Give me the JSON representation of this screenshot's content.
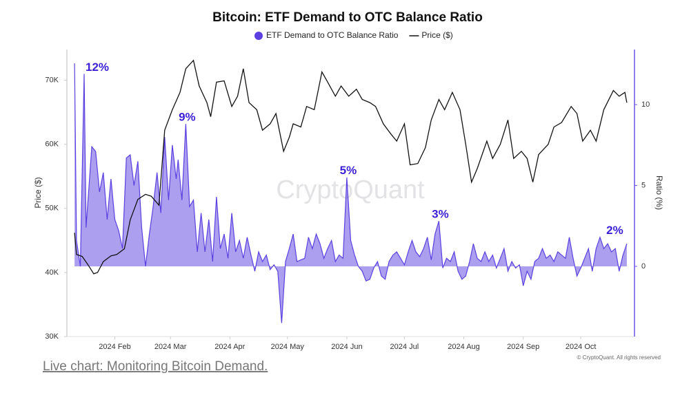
{
  "chart_data": {
    "type": "line-area",
    "title": "Bitcoin: ETF Demand to OTC Balance Ratio",
    "ylabel": "Price ($)",
    "y2label": "Ratio (%)",
    "watermark": "CryptoQuant",
    "copyright": "© CryptoQuant. All rights reserved",
    "link": "Live chart: Monitoring Bitcoin Demand.",
    "xlim": [
      7,
      303
    ],
    "xticks": [
      {
        "value": 32,
        "label": "2024 Feb"
      },
      {
        "value": 61,
        "label": "2024 Mar"
      },
      {
        "value": 92,
        "label": "2024 Apr"
      },
      {
        "value": 122,
        "label": "2024 May"
      },
      {
        "value": 153,
        "label": "2024 Jun"
      },
      {
        "value": 183,
        "label": "2024 Jul"
      },
      {
        "value": 214,
        "label": "2024 Aug"
      },
      {
        "value": 245,
        "label": "2024 Sep"
      },
      {
        "value": 275,
        "label": "2024 Oct"
      }
    ],
    "ylim": [
      30000,
      75000
    ],
    "yticks": [
      {
        "value": 30000,
        "label": "30K"
      },
      {
        "value": 40000,
        "label": "40K"
      },
      {
        "value": 50000,
        "label": "50K"
      },
      {
        "value": 60000,
        "label": "60K"
      },
      {
        "value": 70000,
        "label": "70K"
      }
    ],
    "y2lim": [
      -4.34,
      13.49
    ],
    "y2ticks": [
      0,
      5,
      10
    ],
    "series": [
      {
        "name": "ETF Demand to OTC Balance Ratio",
        "color": "#5b3fe0",
        "axis": "y2",
        "kind": "area",
        "x": [
          11,
          12,
          14,
          16,
          17,
          20,
          22,
          24,
          26,
          28,
          30,
          32,
          34,
          36,
          38,
          40,
          42,
          44,
          46,
          48,
          50,
          52,
          54,
          56,
          58,
          60,
          62,
          64,
          65,
          67,
          69,
          71,
          73,
          75,
          77,
          79,
          81,
          83,
          85,
          87,
          89,
          91,
          93,
          95,
          97,
          99,
          101,
          103,
          105,
          107,
          109,
          111,
          113,
          115,
          117,
          119,
          121,
          123,
          125,
          127,
          129,
          131,
          133,
          135,
          137,
          139,
          141,
          143,
          145,
          147,
          149,
          151,
          153,
          155,
          157,
          159,
          161,
          163,
          165,
          167,
          169,
          171,
          173,
          175,
          177,
          179,
          181,
          183,
          185,
          187,
          189,
          191,
          193,
          195,
          197,
          199,
          201,
          203,
          205,
          207,
          209,
          211,
          213,
          215,
          217,
          219,
          221,
          223,
          225,
          227,
          229,
          231,
          233,
          235,
          237,
          239,
          241,
          243,
          245,
          247,
          249,
          251,
          253,
          255,
          257,
          259,
          261,
          263,
          265,
          267,
          269,
          271,
          273,
          275,
          277,
          279,
          281,
          283,
          285,
          287,
          289,
          291,
          293,
          295,
          297,
          299
        ],
        "values": [
          12.55,
          1.6,
          0,
          11.9,
          2.4,
          7.4,
          7.1,
          4.6,
          5.8,
          2.9,
          5.4,
          2.9,
          2.2,
          1.1,
          6.7,
          6.9,
          5.0,
          6.5,
          2.4,
          0,
          2.0,
          3.7,
          5.8,
          3.3,
          8.0,
          4.1,
          7.5,
          5.4,
          6.6,
          4.1,
          8.8,
          3.7,
          4.1,
          0.9,
          3.3,
          0.9,
          2.9,
          0.3,
          4.3,
          1.1,
          2.0,
          0.5,
          3.3,
          0.9,
          1.6,
          0.5,
          1.8,
          0.7,
          -0.3,
          0.9,
          0.3,
          0.7,
          -0.2,
          0.1,
          -0.3,
          -3.5,
          0.3,
          1.1,
          2.0,
          0.3,
          0.4,
          0.5,
          1.8,
          1.1,
          2.0,
          1.4,
          0.5,
          1.1,
          1.6,
          0.3,
          0.7,
          0.5,
          5.5,
          1.6,
          0.7,
          0,
          -0.3,
          -0.9,
          -0.8,
          -0.1,
          0.3,
          -0.6,
          -0.8,
          0.3,
          0.7,
          0.9,
          0.5,
          0.1,
          0.9,
          1.6,
          0.9,
          0.6,
          1.1,
          1.8,
          0.4,
          2.0,
          2.8,
          -0.1,
          0.5,
          0.3,
          0.9,
          -0.3,
          -0.8,
          -0.6,
          0.3,
          1.4,
          0.5,
          0.3,
          0.9,
          0.3,
          0.7,
          -0.1,
          0.5,
          1.1,
          -0.3,
          0.3,
          -0.1,
          0.1,
          -1.2,
          -0.3,
          -0.8,
          0.3,
          0.5,
          1.1,
          0.5,
          0.7,
          0.3,
          0.9,
          0.7,
          0.5,
          1.8,
          0.5,
          -0.6,
          -0.1,
          0.5,
          1.1,
          -0.3,
          1.1,
          1.8,
          1.1,
          1.4,
          0.9,
          1.1,
          -0.3,
          0.7,
          1.4
        ]
      },
      {
        "name": "Price ($)",
        "color": "#111111",
        "kind": "line",
        "x": [
          11,
          12,
          15,
          18,
          21,
          23,
          26,
          30,
          33,
          37,
          40,
          44,
          48,
          51,
          55,
          58,
          62,
          66,
          69,
          73,
          76,
          80,
          82,
          85,
          89,
          93,
          96,
          99,
          102,
          106,
          109,
          113,
          116,
          120,
          123,
          125,
          129,
          132,
          136,
          140,
          143,
          147,
          150,
          154,
          158,
          161,
          165,
          168,
          172,
          176,
          179,
          183,
          186,
          190,
          194,
          197,
          201,
          204,
          208,
          212,
          215,
          218,
          221,
          226,
          229,
          233,
          237,
          240,
          244,
          247,
          250,
          253,
          258,
          261,
          265,
          270,
          273,
          276,
          280,
          283,
          287,
          292,
          295,
          298,
          299
        ],
        "values": [
          46200,
          42800,
          42500,
          41200,
          39800,
          40000,
          41700,
          42600,
          42800,
          43700,
          48200,
          51400,
          52200,
          51900,
          50500,
          62200,
          65400,
          68100,
          71800,
          73100,
          69100,
          66500,
          64300,
          69700,
          69900,
          65900,
          67500,
          71800,
          66500,
          65400,
          62200,
          63200,
          64800,
          58900,
          61100,
          63200,
          62700,
          65900,
          65400,
          71300,
          69700,
          67500,
          69100,
          67500,
          68600,
          67000,
          66500,
          65900,
          63200,
          61600,
          60500,
          63200,
          56800,
          57000,
          59500,
          63800,
          67000,
          65400,
          68100,
          65400,
          60000,
          54100,
          56200,
          60500,
          57800,
          60000,
          63800,
          57800,
          58900,
          57800,
          54100,
          58400,
          60000,
          62700,
          63400,
          65900,
          64800,
          60500,
          62200,
          60500,
          65400,
          68400,
          67500,
          68100,
          66500
        ]
      }
    ],
    "annotations": [
      {
        "text": "12%",
        "x": 16,
        "y": 11.9
      },
      {
        "text": "9%",
        "x": 69,
        "y": 8.8
      },
      {
        "text": "5%",
        "x": 153,
        "y": 5.5
      },
      {
        "text": "3%",
        "x": 201,
        "y": 2.8
      },
      {
        "text": "2%",
        "x": 292,
        "y": 1.8
      }
    ]
  }
}
